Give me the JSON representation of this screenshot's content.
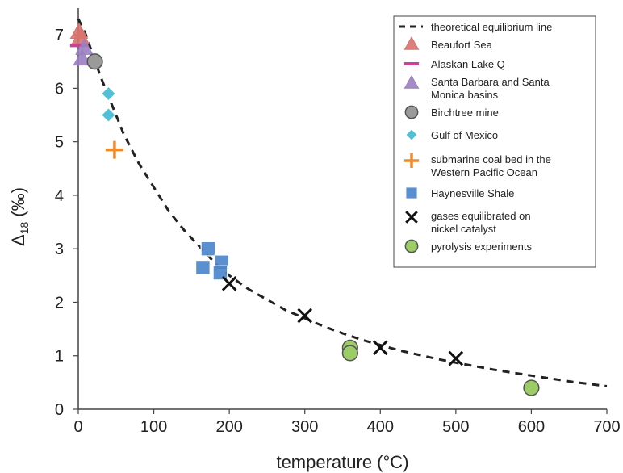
{
  "chart_data": {
    "type": "scatter",
    "xlabel": "temperature (°C)",
    "ylabel_main": "Δ",
    "ylabel_sub": "18",
    "ylabel_unit": "(‰)",
    "xlim": [
      0,
      700
    ],
    "ylim": [
      0,
      7.5
    ],
    "xticks": [
      0,
      100,
      200,
      300,
      400,
      500,
      600,
      700
    ],
    "yticks": [
      0,
      1,
      2,
      3,
      4,
      5,
      6,
      7
    ],
    "grid": false,
    "legend_position": "top-right",
    "equilibrium_line": {
      "name": "theoretical equilibrium line",
      "color": "#222222",
      "points": [
        [
          0,
          7.3
        ],
        [
          10,
          7.0
        ],
        [
          20,
          6.6
        ],
        [
          30,
          6.2
        ],
        [
          40,
          5.85
        ],
        [
          50,
          5.5
        ],
        [
          60,
          5.15
        ],
        [
          80,
          4.6
        ],
        [
          100,
          4.15
        ],
        [
          120,
          3.7
        ],
        [
          140,
          3.35
        ],
        [
          160,
          3.05
        ],
        [
          180,
          2.75
        ],
        [
          200,
          2.5
        ],
        [
          225,
          2.25
        ],
        [
          250,
          2.05
        ],
        [
          275,
          1.85
        ],
        [
          300,
          1.7
        ],
        [
          325,
          1.55
        ],
        [
          350,
          1.42
        ],
        [
          375,
          1.3
        ],
        [
          400,
          1.2
        ],
        [
          425,
          1.1
        ],
        [
          450,
          1.02
        ],
        [
          475,
          0.94
        ],
        [
          500,
          0.87
        ],
        [
          550,
          0.74
        ],
        [
          600,
          0.63
        ],
        [
          650,
          0.52
        ],
        [
          700,
          0.43
        ]
      ]
    },
    "series": [
      {
        "name": "Beaufort Sea",
        "marker": "triangle",
        "color": "#d9726f",
        "points": [
          [
            1,
            7.05
          ],
          [
            3,
            6.95
          ]
        ]
      },
      {
        "name": "Alaskan Lake Q",
        "marker": "hline",
        "color": "#cc3f9a",
        "points": [
          [
            1,
            6.8
          ]
        ]
      },
      {
        "name": "Santa Barbara and Santa Monica basins",
        "marker": "triangle",
        "color": "#9b7fc2",
        "points": [
          [
            8,
            6.75
          ],
          [
            5,
            6.55
          ]
        ]
      },
      {
        "name": "Birchtree mine",
        "marker": "circle",
        "color": "#9a9a9a",
        "points": [
          [
            22,
            6.5
          ]
        ]
      },
      {
        "name": "Gulf of Mexico",
        "marker": "diamond",
        "color": "#4fc0d6",
        "points": [
          [
            40,
            5.9
          ],
          [
            40,
            5.5
          ]
        ]
      },
      {
        "name": "submarine coal bed in the Western Pacific Ocean",
        "marker": "plus",
        "color": "#f08a2a",
        "points": [
          [
            48,
            4.85
          ]
        ]
      },
      {
        "name": "Haynesville Shale",
        "marker": "square",
        "color": "#4c86cc",
        "points": [
          [
            172,
            3.0
          ],
          [
            165,
            2.65
          ],
          [
            190,
            2.75
          ],
          [
            188,
            2.55
          ]
        ]
      },
      {
        "name": "gases equilibrated on nickel catalyst",
        "marker": "x",
        "color": "#111111",
        "points": [
          [
            200,
            2.35
          ],
          [
            300,
            1.75
          ],
          [
            400,
            1.15
          ],
          [
            500,
            0.95
          ]
        ]
      },
      {
        "name": "pyrolysis experiments",
        "marker": "circle",
        "color": "#9ccc65",
        "points": [
          [
            360,
            1.15
          ],
          [
            360,
            1.05
          ],
          [
            600,
            0.4
          ]
        ]
      }
    ]
  }
}
